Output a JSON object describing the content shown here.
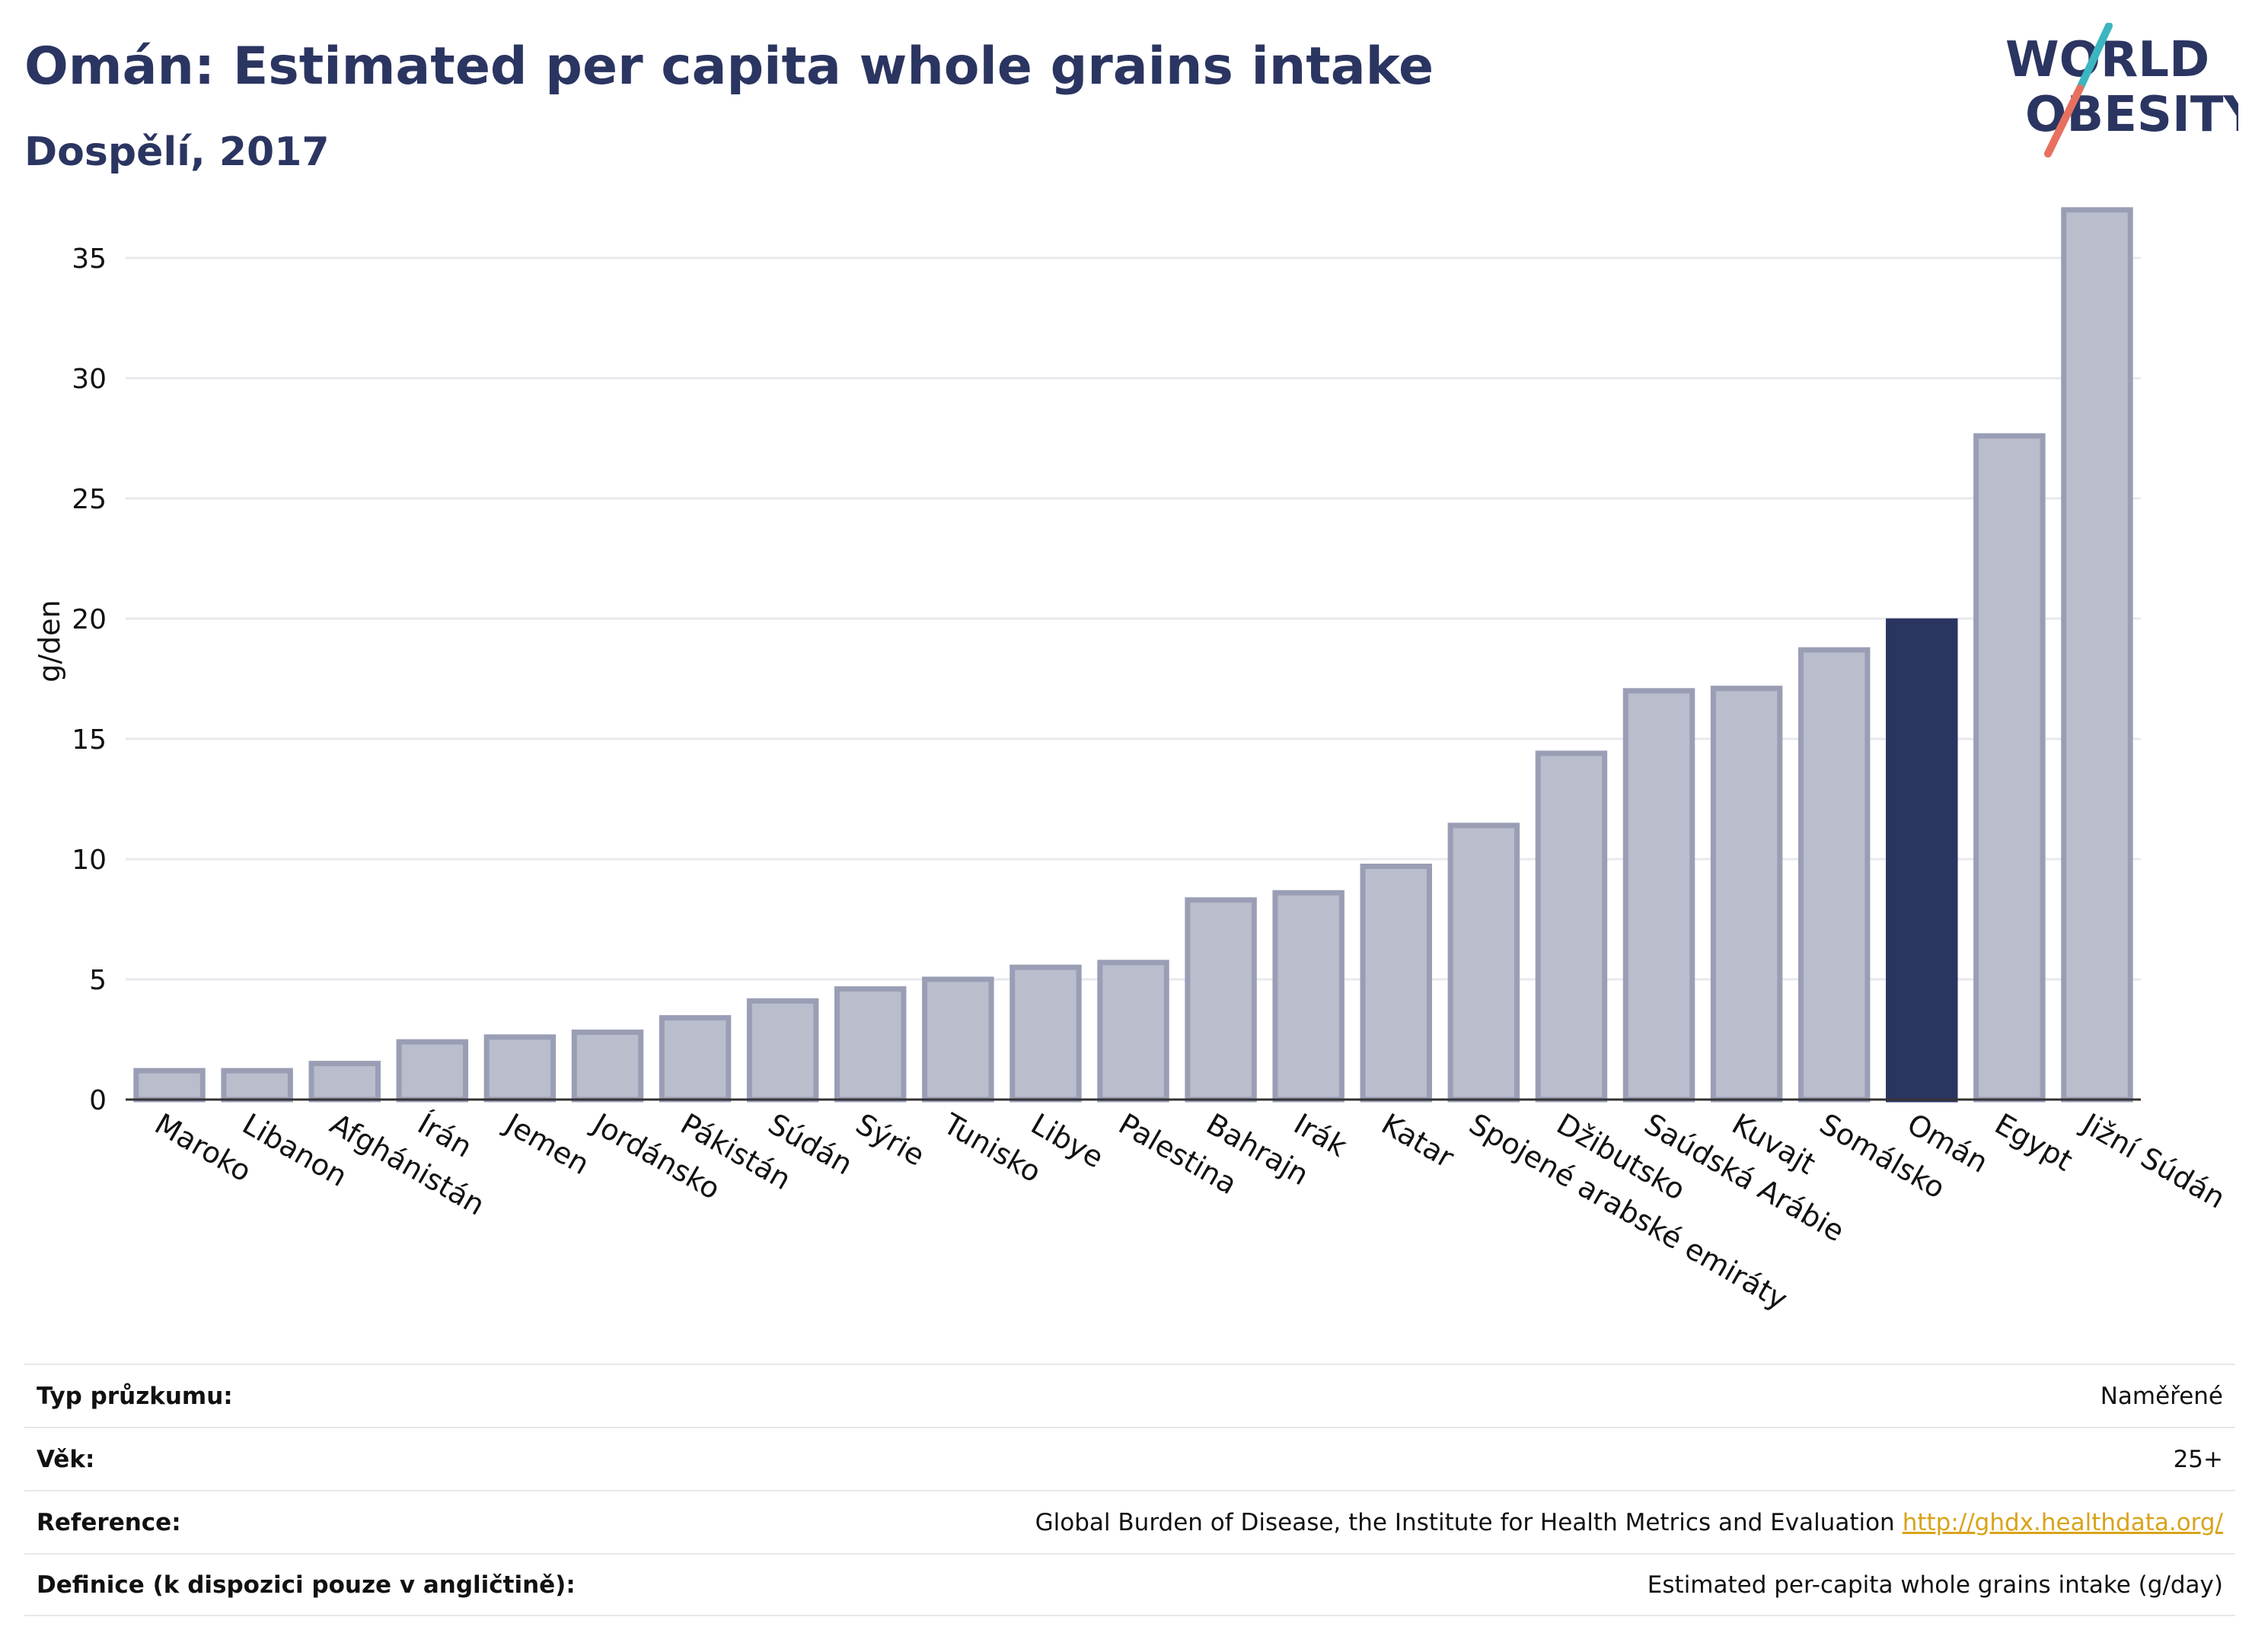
{
  "header": {
    "title": "Omán: Estimated per capita whole grains intake",
    "subtitle": "Dospělí, 2017"
  },
  "logo": {
    "line1": "WORLD",
    "line2": "OBESITY",
    "colors": {
      "text": "#2b3561",
      "slash_top": "#3bb6c1",
      "slash_bottom": "#e8705f"
    }
  },
  "chart_data": {
    "type": "bar",
    "ylabel": "g/den",
    "xlabel": "",
    "ylim": [
      0,
      37.5
    ],
    "yticks": [
      0,
      5,
      10,
      15,
      20,
      25,
      30,
      35
    ],
    "grid": true,
    "highlight": "Omán",
    "colors": {
      "bar": "#babdcc",
      "bar_edge": "#9a9eb5",
      "highlight": "#2b3561",
      "grid": "#e8e9ee"
    },
    "categories": [
      "Maroko",
      "Libanon",
      "Afghánistán",
      "Írán",
      "Jemen",
      "Jordánsko",
      "Pákistán",
      "Súdán",
      "Sýrie",
      "Tunisko",
      "Libye",
      "Palestina",
      "Bahrajn",
      "Irák",
      "Katar",
      "Spojené arabské emiráty",
      "Džibutsko",
      "Saúdská Arábie",
      "Kuvajt",
      "Somálsko",
      "Omán",
      "Egypt",
      "Jižní Súdán"
    ],
    "values": [
      1.2,
      1.2,
      1.5,
      2.4,
      2.6,
      2.8,
      3.4,
      4.1,
      4.6,
      5.0,
      5.5,
      5.7,
      8.3,
      8.6,
      9.7,
      11.4,
      14.4,
      17.0,
      17.1,
      18.7,
      19.9,
      27.6,
      37.0
    ]
  },
  "meta": {
    "rows": [
      {
        "label": "Typ průzkumu:",
        "value": "Naměřené"
      },
      {
        "label": "Věk:",
        "value": "25+"
      },
      {
        "label": "Reference:",
        "value": "Global Burden of Disease, the Institute for Health Metrics and Evaluation",
        "link": "http://ghdx.healthdata.org/"
      },
      {
        "label": "Definice (k dispozici pouze v angličtině):",
        "value": "Estimated per-capita whole grains intake (g/day)"
      }
    ]
  }
}
